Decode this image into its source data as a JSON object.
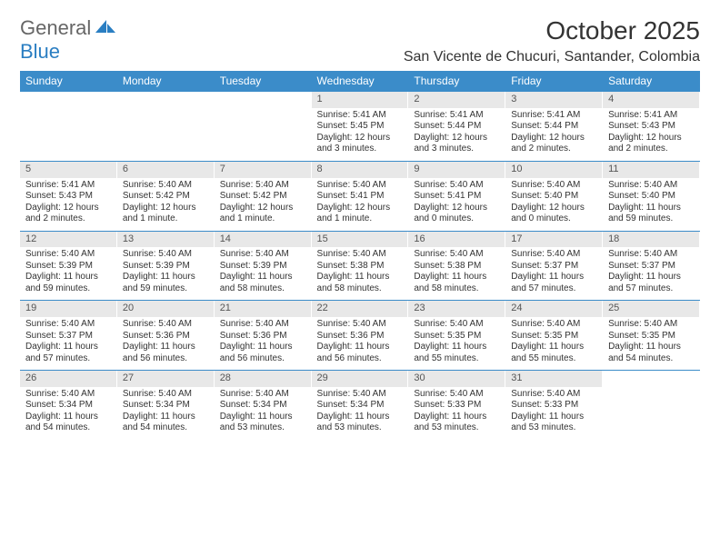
{
  "logo": {
    "general": "General",
    "blue": "Blue"
  },
  "title": "October 2025",
  "location": "San Vicente de Chucuri, Santander, Colombia",
  "day_headers": [
    "Sunday",
    "Monday",
    "Tuesday",
    "Wednesday",
    "Thursday",
    "Friday",
    "Saturday"
  ],
  "colors": {
    "header_bg": "#3b8cc9",
    "header_text": "#ffffff",
    "daynum_bg": "#e8e8e8",
    "logo_gray": "#666666",
    "logo_blue": "#2a7ec2",
    "row_border": "#3b8cc9"
  },
  "weeks": [
    [
      {
        "n": "",
        "sunrise": "",
        "sunset": "",
        "daylight": ""
      },
      {
        "n": "",
        "sunrise": "",
        "sunset": "",
        "daylight": ""
      },
      {
        "n": "",
        "sunrise": "",
        "sunset": "",
        "daylight": ""
      },
      {
        "n": "1",
        "sunrise": "Sunrise: 5:41 AM",
        "sunset": "Sunset: 5:45 PM",
        "daylight": "Daylight: 12 hours and 3 minutes."
      },
      {
        "n": "2",
        "sunrise": "Sunrise: 5:41 AM",
        "sunset": "Sunset: 5:44 PM",
        "daylight": "Daylight: 12 hours and 3 minutes."
      },
      {
        "n": "3",
        "sunrise": "Sunrise: 5:41 AM",
        "sunset": "Sunset: 5:44 PM",
        "daylight": "Daylight: 12 hours and 2 minutes."
      },
      {
        "n": "4",
        "sunrise": "Sunrise: 5:41 AM",
        "sunset": "Sunset: 5:43 PM",
        "daylight": "Daylight: 12 hours and 2 minutes."
      }
    ],
    [
      {
        "n": "5",
        "sunrise": "Sunrise: 5:41 AM",
        "sunset": "Sunset: 5:43 PM",
        "daylight": "Daylight: 12 hours and 2 minutes."
      },
      {
        "n": "6",
        "sunrise": "Sunrise: 5:40 AM",
        "sunset": "Sunset: 5:42 PM",
        "daylight": "Daylight: 12 hours and 1 minute."
      },
      {
        "n": "7",
        "sunrise": "Sunrise: 5:40 AM",
        "sunset": "Sunset: 5:42 PM",
        "daylight": "Daylight: 12 hours and 1 minute."
      },
      {
        "n": "8",
        "sunrise": "Sunrise: 5:40 AM",
        "sunset": "Sunset: 5:41 PM",
        "daylight": "Daylight: 12 hours and 1 minute."
      },
      {
        "n": "9",
        "sunrise": "Sunrise: 5:40 AM",
        "sunset": "Sunset: 5:41 PM",
        "daylight": "Daylight: 12 hours and 0 minutes."
      },
      {
        "n": "10",
        "sunrise": "Sunrise: 5:40 AM",
        "sunset": "Sunset: 5:40 PM",
        "daylight": "Daylight: 12 hours and 0 minutes."
      },
      {
        "n": "11",
        "sunrise": "Sunrise: 5:40 AM",
        "sunset": "Sunset: 5:40 PM",
        "daylight": "Daylight: 11 hours and 59 minutes."
      }
    ],
    [
      {
        "n": "12",
        "sunrise": "Sunrise: 5:40 AM",
        "sunset": "Sunset: 5:39 PM",
        "daylight": "Daylight: 11 hours and 59 minutes."
      },
      {
        "n": "13",
        "sunrise": "Sunrise: 5:40 AM",
        "sunset": "Sunset: 5:39 PM",
        "daylight": "Daylight: 11 hours and 59 minutes."
      },
      {
        "n": "14",
        "sunrise": "Sunrise: 5:40 AM",
        "sunset": "Sunset: 5:39 PM",
        "daylight": "Daylight: 11 hours and 58 minutes."
      },
      {
        "n": "15",
        "sunrise": "Sunrise: 5:40 AM",
        "sunset": "Sunset: 5:38 PM",
        "daylight": "Daylight: 11 hours and 58 minutes."
      },
      {
        "n": "16",
        "sunrise": "Sunrise: 5:40 AM",
        "sunset": "Sunset: 5:38 PM",
        "daylight": "Daylight: 11 hours and 58 minutes."
      },
      {
        "n": "17",
        "sunrise": "Sunrise: 5:40 AM",
        "sunset": "Sunset: 5:37 PM",
        "daylight": "Daylight: 11 hours and 57 minutes."
      },
      {
        "n": "18",
        "sunrise": "Sunrise: 5:40 AM",
        "sunset": "Sunset: 5:37 PM",
        "daylight": "Daylight: 11 hours and 57 minutes."
      }
    ],
    [
      {
        "n": "19",
        "sunrise": "Sunrise: 5:40 AM",
        "sunset": "Sunset: 5:37 PM",
        "daylight": "Daylight: 11 hours and 57 minutes."
      },
      {
        "n": "20",
        "sunrise": "Sunrise: 5:40 AM",
        "sunset": "Sunset: 5:36 PM",
        "daylight": "Daylight: 11 hours and 56 minutes."
      },
      {
        "n": "21",
        "sunrise": "Sunrise: 5:40 AM",
        "sunset": "Sunset: 5:36 PM",
        "daylight": "Daylight: 11 hours and 56 minutes."
      },
      {
        "n": "22",
        "sunrise": "Sunrise: 5:40 AM",
        "sunset": "Sunset: 5:36 PM",
        "daylight": "Daylight: 11 hours and 56 minutes."
      },
      {
        "n": "23",
        "sunrise": "Sunrise: 5:40 AM",
        "sunset": "Sunset: 5:35 PM",
        "daylight": "Daylight: 11 hours and 55 minutes."
      },
      {
        "n": "24",
        "sunrise": "Sunrise: 5:40 AM",
        "sunset": "Sunset: 5:35 PM",
        "daylight": "Daylight: 11 hours and 55 minutes."
      },
      {
        "n": "25",
        "sunrise": "Sunrise: 5:40 AM",
        "sunset": "Sunset: 5:35 PM",
        "daylight": "Daylight: 11 hours and 54 minutes."
      }
    ],
    [
      {
        "n": "26",
        "sunrise": "Sunrise: 5:40 AM",
        "sunset": "Sunset: 5:34 PM",
        "daylight": "Daylight: 11 hours and 54 minutes."
      },
      {
        "n": "27",
        "sunrise": "Sunrise: 5:40 AM",
        "sunset": "Sunset: 5:34 PM",
        "daylight": "Daylight: 11 hours and 54 minutes."
      },
      {
        "n": "28",
        "sunrise": "Sunrise: 5:40 AM",
        "sunset": "Sunset: 5:34 PM",
        "daylight": "Daylight: 11 hours and 53 minutes."
      },
      {
        "n": "29",
        "sunrise": "Sunrise: 5:40 AM",
        "sunset": "Sunset: 5:34 PM",
        "daylight": "Daylight: 11 hours and 53 minutes."
      },
      {
        "n": "30",
        "sunrise": "Sunrise: 5:40 AM",
        "sunset": "Sunset: 5:33 PM",
        "daylight": "Daylight: 11 hours and 53 minutes."
      },
      {
        "n": "31",
        "sunrise": "Sunrise: 5:40 AM",
        "sunset": "Sunset: 5:33 PM",
        "daylight": "Daylight: 11 hours and 53 minutes."
      },
      {
        "n": "",
        "sunrise": "",
        "sunset": "",
        "daylight": ""
      }
    ]
  ]
}
